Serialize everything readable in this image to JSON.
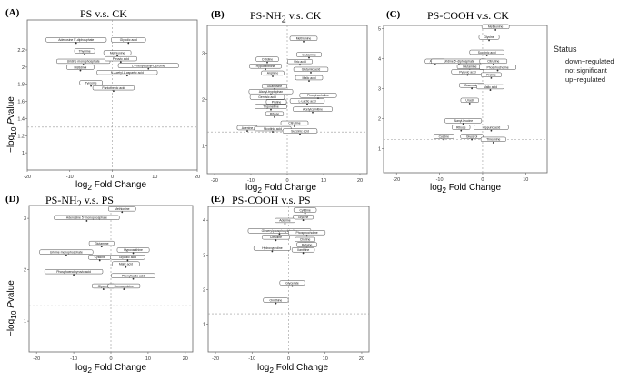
{
  "legend": {
    "title": "Status",
    "items": [
      "down−regulated",
      "not significant",
      "up−regulated"
    ]
  },
  "chart_data": [
    {
      "type": "scatter",
      "panel_label": "(A)",
      "title_html": "PS v.s. CK",
      "xlabel_html": "log<sub>2</sub> Fold Change",
      "ylabel_html": "−log<sub>10</sub> <i>P</i>value",
      "xlim": [
        -20,
        20
      ],
      "ylim": [
        0.8,
        2.55
      ],
      "xticks": [
        -20,
        -10,
        0,
        10,
        20
      ],
      "yticks": [
        1.0,
        1.2,
        1.4,
        1.6,
        1.8,
        2.0,
        2.2
      ],
      "threshold_y": 1.3,
      "threshold_x": 0,
      "points": [
        {
          "x": -8.5,
          "y": 2.28,
          "label": "Adenosine 5'-diphosphate"
        },
        {
          "x": 3.8,
          "y": 2.28,
          "label": "Glycolic acid"
        },
        {
          "x": -6.5,
          "y": 2.15,
          "label": "Thymine"
        },
        {
          "x": 1.2,
          "y": 2.13,
          "label": "Methionine"
        },
        {
          "x": -6.8,
          "y": 2.03,
          "label": "Uridine monophosphate"
        },
        {
          "x": 2.0,
          "y": 2.06,
          "label": "Pyruvic acid"
        },
        {
          "x": 8.5,
          "y": 1.98,
          "label": "L-Phenylalanyl-L-proline"
        },
        {
          "x": -7.5,
          "y": 1.96,
          "label": "Histidinol"
        },
        {
          "x": 3.5,
          "y": 1.9,
          "label": "N-Acetyl-L-aspartic acid"
        },
        {
          "x": -5.0,
          "y": 1.78,
          "label": "Tyrosine"
        },
        {
          "x": 0.3,
          "y": 1.72,
          "label": "Pantothenic acid"
        }
      ]
    },
    {
      "type": "scatter",
      "panel_label": "(B)",
      "title_html": "PS-NH<sub>2</sub> v.s. CK",
      "xlabel_html": "log<sub>2</sub> Fold Change",
      "ylabel_html": "",
      "xlim": [
        -22,
        22
      ],
      "ylim": [
        0.4,
        3.6
      ],
      "xticks": [
        -20,
        -10,
        0,
        10,
        20
      ],
      "yticks": [
        1,
        2,
        3
      ],
      "threshold_y": 1.3,
      "threshold_x": 0,
      "points": [
        {
          "x": 4.5,
          "y": 3.25,
          "label": "Methionine"
        },
        {
          "x": 6.0,
          "y": 2.9,
          "label": "Glutamine"
        },
        {
          "x": -5.5,
          "y": 2.8,
          "label": "Cytidine"
        },
        {
          "x": 3.5,
          "y": 2.75,
          "label": "Uric acid"
        },
        {
          "x": -6.0,
          "y": 2.65,
          "label": "Hypoxanthine"
        },
        {
          "x": 6.5,
          "y": 2.58,
          "label": "Glutamic acid"
        },
        {
          "x": -4.0,
          "y": 2.5,
          "label": "Arginine"
        },
        {
          "x": 6.0,
          "y": 2.4,
          "label": "Malic acid"
        },
        {
          "x": -3.5,
          "y": 2.22,
          "label": "Guanosine"
        },
        {
          "x": -4.5,
          "y": 2.1,
          "label": "Alanyl-tryptophan"
        },
        {
          "x": 8.5,
          "y": 2.02,
          "label": "Phosphocholine"
        },
        {
          "x": -5.5,
          "y": 1.98,
          "label": "Gentisic acid"
        },
        {
          "x": -3.0,
          "y": 1.88,
          "label": "Proline"
        },
        {
          "x": 5.5,
          "y": 1.9,
          "label": "L-Lactic acid"
        },
        {
          "x": -4.5,
          "y": 1.78,
          "label": "Trigonelline"
        },
        {
          "x": 7.0,
          "y": 1.72,
          "label": "Acetylcarnitine"
        },
        {
          "x": -3.5,
          "y": 1.62,
          "label": "Ribose"
        },
        {
          "x": 2.0,
          "y": 1.42,
          "label": "Citrulline"
        },
        {
          "x": -11.0,
          "y": 1.32,
          "label": "Adenine"
        },
        {
          "x": -4.0,
          "y": 1.3,
          "label": "Nicotinic acid"
        },
        {
          "x": 3.5,
          "y": 1.25,
          "label": "Succinic acid"
        }
      ]
    },
    {
      "type": "scatter",
      "panel_label": "(C)",
      "title_html": "PS-COOH v.s. CK",
      "xlabel_html": "log<sub>2</sub> Fold Change",
      "ylabel_html": "",
      "xlim": [
        -23,
        15
      ],
      "ylim": [
        0.2,
        5.1
      ],
      "xticks": [
        -20,
        -10,
        0,
        10
      ],
      "yticks": [
        1,
        2,
        3,
        4,
        5
      ],
      "threshold_y": 1.3,
      "threshold_x": 0,
      "points": [
        {
          "x": 3.0,
          "y": 4.95,
          "label": "Methionine"
        },
        {
          "x": 1.5,
          "y": 4.6,
          "label": "Glycine"
        },
        {
          "x": 1.0,
          "y": 4.1,
          "label": "Succinic acid"
        },
        {
          "x": -11.0,
          "y": 3.8,
          "label": "Adenine"
        },
        {
          "x": -5.5,
          "y": 3.8,
          "label": "Uridine 5'-diphosphate"
        },
        {
          "x": 2.5,
          "y": 3.8,
          "label": "Citrulline"
        },
        {
          "x": -3.0,
          "y": 3.62,
          "label": "Glutamine"
        },
        {
          "x": 3.5,
          "y": 3.6,
          "label": "Phosphocholine"
        },
        {
          "x": -3.5,
          "y": 3.45,
          "label": "Pyruvic acid"
        },
        {
          "x": 2.0,
          "y": 3.35,
          "label": "Proline"
        },
        {
          "x": -2.5,
          "y": 3.0,
          "label": "Guanosine"
        },
        {
          "x": 1.8,
          "y": 2.95,
          "label": "Malic acid"
        },
        {
          "x": -3.0,
          "y": 2.5,
          "label": "Uracil"
        },
        {
          "x": -4.5,
          "y": 1.82,
          "label": "Alanyl-leucine"
        },
        {
          "x": 2.0,
          "y": 1.6,
          "label": "Hippuric acid"
        },
        {
          "x": -5.0,
          "y": 1.6,
          "label": "Ribose"
        },
        {
          "x": -9.0,
          "y": 1.3,
          "label": "Cystine"
        },
        {
          "x": -2.5,
          "y": 1.3,
          "label": "Glycerol"
        },
        {
          "x": 2.5,
          "y": 1.2,
          "label": "Threonine"
        }
      ]
    },
    {
      "type": "scatter",
      "panel_label": "(D)",
      "title_html": "PS-NH<sub>2</sub> v.s. PS",
      "xlabel_html": "log<sub>2</sub> Fold Change",
      "ylabel_html": "−log<sub>10</sub> <i>P</i>value",
      "xlim": [
        -22,
        22
      ],
      "ylim": [
        0.4,
        3.25
      ],
      "xticks": [
        -20,
        -10,
        0,
        10,
        20
      ],
      "yticks": [
        1,
        2,
        3
      ],
      "threshold_y": 1.3,
      "threshold_x": 0,
      "points": [
        {
          "x": 3.0,
          "y": 3.12,
          "label": "Methionine"
        },
        {
          "x": -6.5,
          "y": 2.95,
          "label": "Adenosine 5'-monophosphate"
        },
        {
          "x": -2.5,
          "y": 2.45,
          "label": "Glutamine"
        },
        {
          "x": 6.0,
          "y": 2.32,
          "label": "Hypoxanthine"
        },
        {
          "x": -12.0,
          "y": 2.28,
          "label": "Uridine monophosphate"
        },
        {
          "x": -3.0,
          "y": 2.18,
          "label": "Cytidine"
        },
        {
          "x": 4.5,
          "y": 2.18,
          "label": "Glycolic acid"
        },
        {
          "x": 4.0,
          "y": 2.05,
          "label": "Malic acid"
        },
        {
          "x": -10.0,
          "y": 1.9,
          "label": "Phosphoenolpyruvic acid"
        },
        {
          "x": 6.0,
          "y": 1.82,
          "label": "Phenyllactic acid"
        },
        {
          "x": -2.0,
          "y": 1.62,
          "label": "Glycerol"
        },
        {
          "x": 3.5,
          "y": 1.62,
          "label": "Homocysteine"
        }
      ]
    },
    {
      "type": "scatter",
      "panel_label": "(E)",
      "title_html": "PS-COOH v.s. PS",
      "xlabel_html": "log<sub>2</sub> Fold Change",
      "ylabel_html": "",
      "xlim": [
        -22,
        22
      ],
      "ylim": [
        0.2,
        4.4
      ],
      "xticks": [
        -20,
        -10,
        0,
        10,
        20
      ],
      "yticks": [
        1,
        2,
        3,
        4
      ],
      "threshold_y": 1.3,
      "threshold_x": 0,
      "points": [
        {
          "x": 4.5,
          "y": 4.2,
          "label": "Cytidine"
        },
        {
          "x": 4.0,
          "y": 4.0,
          "label": "Glycine"
        },
        {
          "x": -1.0,
          "y": 3.9,
          "label": "Adenine"
        },
        {
          "x": -2.5,
          "y": 3.6,
          "label": "Glycerylphosphorylcholine"
        },
        {
          "x": 5.0,
          "y": 3.55,
          "label": "Phosphocholine"
        },
        {
          "x": -3.5,
          "y": 3.42,
          "label": "Citrulline"
        },
        {
          "x": 4.5,
          "y": 3.35,
          "label": "Choline"
        },
        {
          "x": 5.0,
          "y": 3.2,
          "label": "Betaine"
        },
        {
          "x": -4.5,
          "y": 3.1,
          "label": "Hydroxyproline"
        },
        {
          "x": 4.0,
          "y": 3.05,
          "label": "Xanthine"
        },
        {
          "x": 1.0,
          "y": 2.1,
          "label": "Glycerate"
        },
        {
          "x": -3.5,
          "y": 1.6,
          "label": "Ornithine"
        }
      ]
    }
  ]
}
